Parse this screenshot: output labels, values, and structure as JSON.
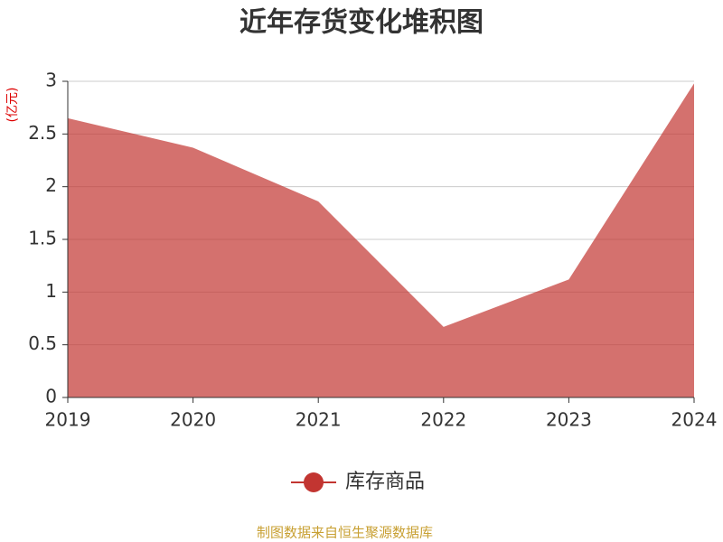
{
  "chart_data": {
    "type": "area",
    "title": "近年存货变化堆积图",
    "y_unit": "(亿元)",
    "categories": [
      "2019",
      "2020",
      "2021",
      "2022",
      "2023",
      "2024"
    ],
    "series": [
      {
        "name": "库存商品",
        "color": "#c23531",
        "values": [
          2.65,
          2.37,
          1.86,
          0.67,
          1.12,
          2.98
        ]
      }
    ],
    "ylim": [
      0,
      3
    ],
    "yticks": [
      0,
      0.5,
      1,
      1.5,
      2,
      2.5,
      3
    ],
    "grid": true,
    "legend": "bottom",
    "source": "制图数据来自恒生聚源数据库"
  }
}
